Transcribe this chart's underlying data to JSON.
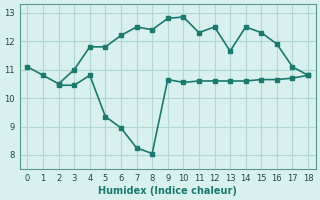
{
  "line1_x": [
    0,
    1,
    2,
    3,
    4,
    5,
    6,
    7,
    8,
    9,
    10,
    11,
    12,
    13,
    14,
    15,
    16,
    17,
    18
  ],
  "line1_y": [
    11.1,
    10.8,
    10.5,
    11.0,
    11.8,
    11.8,
    12.2,
    12.5,
    12.4,
    12.8,
    12.85,
    12.3,
    12.5,
    11.65,
    12.5,
    12.3,
    11.9,
    11.1,
    10.8
  ],
  "line2_x": [
    2,
    3,
    4,
    5,
    6,
    7,
    8,
    9,
    10,
    11,
    12,
    13,
    14,
    15,
    16,
    17,
    18
  ],
  "line2_y": [
    10.45,
    10.45,
    10.8,
    9.35,
    8.95,
    8.25,
    8.05,
    10.65,
    10.55,
    10.6,
    10.6,
    10.6,
    10.6,
    10.65,
    10.65,
    10.7,
    10.8
  ],
  "line_color": "#1a7a6e",
  "bg_color": "#d8f0ee",
  "grid_color": "#b0d8d4",
  "xlabel": "Humidex (Indice chaleur)",
  "ylim": [
    7.5,
    13.3
  ],
  "xlim": [
    -0.5,
    18.5
  ],
  "yticks": [
    8,
    9,
    10,
    11,
    12,
    13
  ],
  "xticks": [
    0,
    1,
    2,
    3,
    4,
    5,
    6,
    7,
    8,
    9,
    10,
    11,
    12,
    13,
    14,
    15,
    16,
    17,
    18
  ],
  "marker_size": 3,
  "line_width": 1.2
}
